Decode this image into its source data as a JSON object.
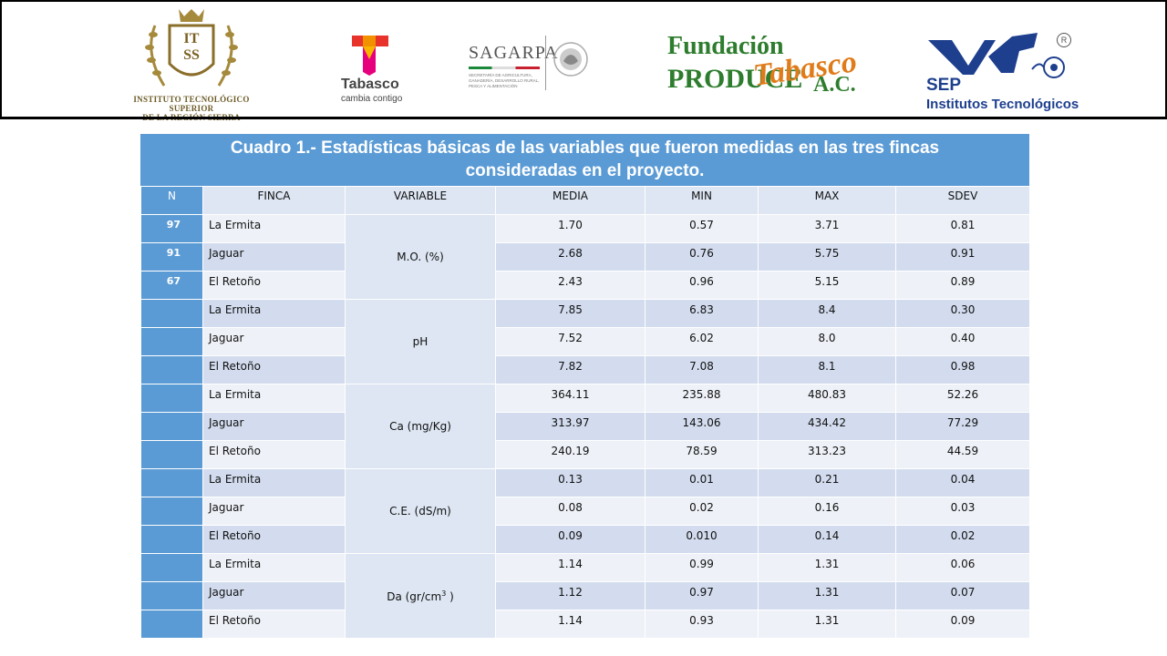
{
  "logos": {
    "itss": {
      "initials_top": "IT",
      "initials_bottom": "SS",
      "line1": "INSTITUTO TECNOLÓGICO SUPERIOR",
      "line2": "DE LA REGIÓN SIERRA"
    },
    "tabasco": {
      "name": "Tabasco",
      "slogan": "cambia contigo"
    },
    "sagarpa": {
      "name": "SAGARPA",
      "desc": "SECRETARÍA DE AGRICULTURA, GANADERÍA, DESARROLLO RURAL, PESCA Y ALIMENTACIÓN"
    },
    "fundacion": {
      "word1": "Fundación",
      "word2": "PRODUCE",
      "word3": "Tabasco",
      "word4": "A.C."
    },
    "sep": {
      "name": "SEP",
      "subtitle": "Institutos Tecnológicos",
      "reg": "R"
    }
  },
  "table": {
    "caption_line1": "Cuadro 1.- Estadísticas básicas de las variables que fueron medidas en las tres fincas",
    "caption_line2": "consideradas en el proyecto.",
    "headers": [
      "N",
      "FINCA",
      "VARIABLE",
      "MEDIA",
      "MIN",
      "MAX",
      "SDEV"
    ],
    "groups": [
      {
        "variable": "M.O. (%)",
        "rows": [
          {
            "n": "97",
            "finca": "La Ermita",
            "media": "1.70",
            "min": "0.57",
            "max": "3.71",
            "sdev": "0.81"
          },
          {
            "n": "91",
            "finca": "Jaguar",
            "media": "2.68",
            "min": "0.76",
            "max": "5.75",
            "sdev": "0.91"
          },
          {
            "n": "67",
            "finca": "El Retoño",
            "media": "2.43",
            "min": "0.96",
            "max": "5.15",
            "sdev": "0.89"
          }
        ]
      },
      {
        "variable": "pH",
        "rows": [
          {
            "n": "",
            "finca": "La Ermita",
            "media": "7.85",
            "min": "6.83",
            "max": "8.4",
            "sdev": "0.30"
          },
          {
            "n": "",
            "finca": "Jaguar",
            "media": "7.52",
            "min": "6.02",
            "max": "8.0",
            "sdev": "0.40"
          },
          {
            "n": "",
            "finca": "El Retoño",
            "media": "7.82",
            "min": "7.08",
            "max": "8.1",
            "sdev": "0.98"
          }
        ]
      },
      {
        "variable": "Ca (mg/Kg)",
        "rows": [
          {
            "n": "",
            "finca": "La Ermita",
            "media": "364.11",
            "min": "235.88",
            "max": "480.83",
            "sdev": "52.26"
          },
          {
            "n": "",
            "finca": "Jaguar",
            "media": "313.97",
            "min": "143.06",
            "max": "434.42",
            "sdev": "77.29"
          },
          {
            "n": "",
            "finca": "El Retoño",
            "media": "240.19",
            "min": "78.59",
            "max": "313.23",
            "sdev": "44.59"
          }
        ]
      },
      {
        "variable": "C.E. (dS/m)",
        "rows": [
          {
            "n": "",
            "finca": "La Ermita",
            "media": "0.13",
            "min": "0.01",
            "max": "0.21",
            "sdev": "0.04"
          },
          {
            "n": "",
            "finca": "Jaguar",
            "media": "0.08",
            "min": "0.02",
            "max": "0.16",
            "sdev": "0.03"
          },
          {
            "n": "",
            "finca": "El Retoño",
            "media": "0.09",
            "min": "0.010",
            "max": "0.14",
            "sdev": "0.02"
          }
        ]
      },
      {
        "variable": "Da  (gr/cm",
        "variable_sup": "3",
        "variable_tail": " )",
        "rows": [
          {
            "n": "",
            "finca": "La Ermita",
            "media": "1.14",
            "min": "0.99",
            "max": "1.31",
            "sdev": "0.06"
          },
          {
            "n": "",
            "finca": "Jaguar",
            "media": "1.12",
            "min": "0.97",
            "max": "1.31",
            "sdev": "0.07"
          },
          {
            "n": "",
            "finca": "El Retoño",
            "media": "1.14",
            "min": "0.93",
            "max": "1.31",
            "sdev": "0.09"
          }
        ]
      }
    ]
  }
}
